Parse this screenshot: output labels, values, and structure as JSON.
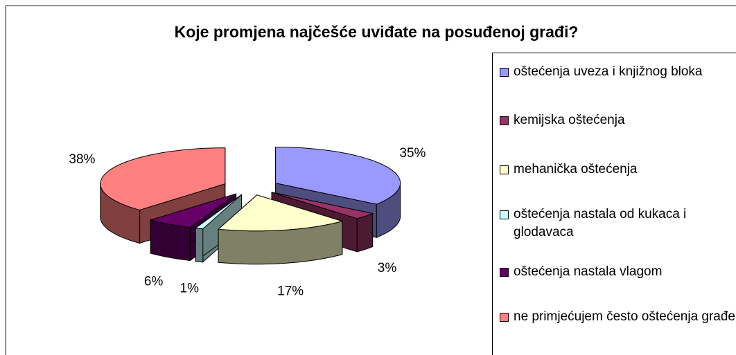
{
  "chart_data": {
    "type": "pie",
    "title": "Koje promjena najčešće uviđate na posuđenoj građi?",
    "categories": [
      "oštećenja uveza i knjižnog bloka",
      "kemijska oštećenja",
      "mehanička oštećenja",
      "oštećenja nastala od kukaca i glodavaca",
      "oštećenja nastala vlagom",
      "ne primjećujem često oštećenja građe"
    ],
    "values": [
      35,
      3,
      17,
      1,
      6,
      38
    ],
    "value_labels": [
      "35%",
      "3%",
      "17%",
      "1%",
      "6%",
      "38%"
    ],
    "colors": [
      "#9999ff",
      "#993366",
      "#ffffcc",
      "#ccffff",
      "#660066",
      "#ff8080"
    ],
    "legend": "right"
  }
}
